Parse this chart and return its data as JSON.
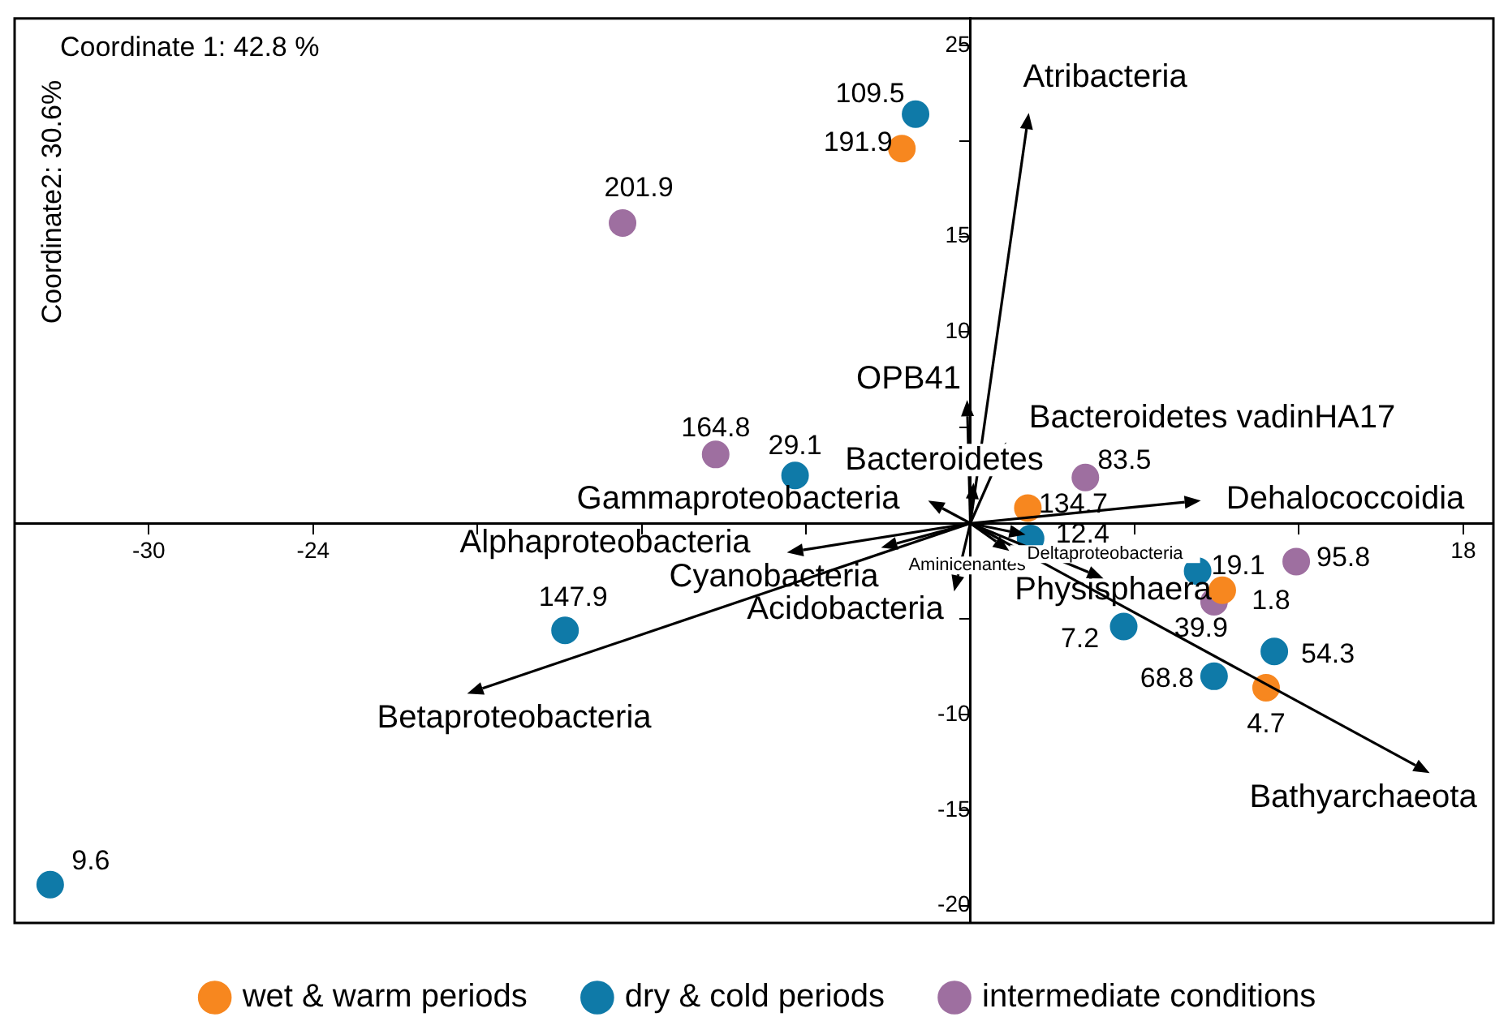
{
  "chart_data": {
    "type": "scatter",
    "xlabel": "Coordinate 1: 42.8 %",
    "ylabel": "Coordinate2: 30.6%",
    "xlim": [
      -34.9,
      19.1
    ],
    "ylim": [
      -20.9,
      26.4
    ],
    "xticks": [
      -30,
      -24,
      {
        "value": -18,
        "label": null
      },
      {
        "value": -12,
        "label": null
      },
      {
        "value": -6,
        "label": null
      },
      {
        "value": 6,
        "label": null
      },
      {
        "value": 12,
        "label": null
      },
      18
    ],
    "yticks": [
      -20,
      -15,
      -10,
      {
        "value": -5,
        "label": null
      },
      {
        "value": 5,
        "label": null
      },
      10,
      15,
      {
        "value": 20,
        "label": null
      },
      25
    ],
    "grid": false,
    "legend": "bottom",
    "marker": "circle",
    "series": [
      {
        "name": "wet & warm periods",
        "color": "#f7871f",
        "x": [
          -2.5,
          2.1,
          9.2,
          10.8
        ],
        "values": [
          19.6,
          0.8,
          -3.5,
          -8.6
        ]
      },
      {
        "name": "dry & cold periods",
        "color": "#0f7aa8",
        "x": [
          -2.0,
          -6.4,
          2.2,
          8.3,
          5.6,
          11.1,
          8.9,
          -14.8,
          -33.6
        ],
        "values": [
          21.4,
          2.5,
          -0.8,
          -2.5,
          -5.4,
          -6.7,
          -8.0,
          -5.6,
          -18.9
        ]
      },
      {
        "name": "intermediate conditions",
        "color": "#9e6fa0",
        "x": [
          -12.7,
          -9.3,
          4.2,
          11.9,
          8.9
        ],
        "values": [
          15.7,
          3.6,
          2.4,
          -2.0,
          -4.1
        ]
      }
    ],
    "annotations": [
      {
        "text": "191.9",
        "x": -2.5,
        "y": 19.6
      },
      {
        "text": "134.7",
        "x": 2.1,
        "y": 0.8
      },
      {
        "text": "1.8",
        "x": 9.2,
        "y": -3.5
      },
      {
        "text": "4.7",
        "x": 10.8,
        "y": -8.6
      },
      {
        "text": "109.5",
        "x": -2.0,
        "y": 21.4
      },
      {
        "text": "29.1",
        "x": -6.4,
        "y": 2.5
      },
      {
        "text": "12.4",
        "x": 2.2,
        "y": -0.8
      },
      {
        "text": "19.1",
        "x": 8.3,
        "y": -2.5
      },
      {
        "text": "7.2",
        "x": 5.6,
        "y": -5.4
      },
      {
        "text": "54.3",
        "x": 11.1,
        "y": -6.7
      },
      {
        "text": "68.8",
        "x": 8.9,
        "y": -8.0
      },
      {
        "text": "147.9",
        "x": -14.8,
        "y": -5.6
      },
      {
        "text": "9.6",
        "x": -33.6,
        "y": -18.9
      },
      {
        "text": "201.9",
        "x": -12.7,
        "y": 15.7
      },
      {
        "text": "164.8",
        "x": -9.3,
        "y": 3.6
      },
      {
        "text": "83.5",
        "x": 4.2,
        "y": 2.4
      },
      {
        "text": "95.8",
        "x": 11.9,
        "y": -2.0
      },
      {
        "text": "39.9",
        "x": 8.9,
        "y": -4.1
      },
      "Atribacteria",
      "OPB41",
      "Bacteroidetes vadinHA17",
      "Bacteroidetes",
      "Dehalococcoidia",
      "Gammaproteobacteria",
      "Alphaproteobacteria",
      "Cyanobacteria",
      "Acidobacteria",
      "Aminicenantes",
      "Deltaproteobacteria",
      "Physisphaera",
      "Betaproteobacteria",
      "Bathyarchaeota"
    ]
  }
}
